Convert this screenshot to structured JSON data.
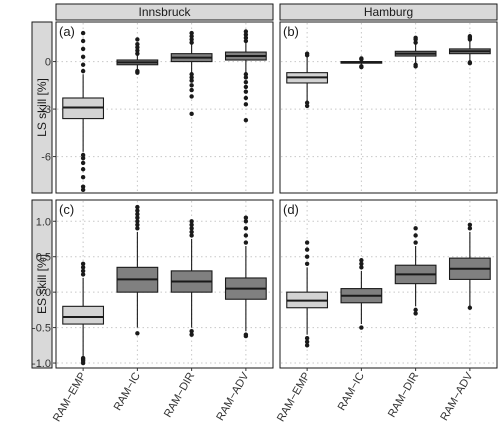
{
  "chart_data": {
    "type": "boxplot",
    "columns": [
      "Innsbruck",
      "Hamburg"
    ],
    "categories": [
      "RAM−EMP",
      "RAM−IC",
      "RAM−DIR",
      "RAM−ADV"
    ],
    "category_fills": [
      "#d3d3d3",
      "#808080",
      "#808080",
      "#808080"
    ],
    "rows": [
      {
        "ylabel": "LS skill [%]",
        "ylim": [
          -8.3,
          2.5
        ],
        "yticks": [
          {
            "value": 0,
            "label": "0"
          },
          {
            "value": -3,
            "label": "-3"
          },
          {
            "value": -6,
            "label": "-6"
          }
        ],
        "panels": [
          {
            "tag": "(a)",
            "boxes": [
              {
                "lw": -5.7,
                "q1": -3.6,
                "med": -2.9,
                "q3": -2.3,
                "uw": -0.8,
                "outliers": [
                  -5.9,
                  -6.1,
                  -6.4,
                  -6.8,
                  -7.3,
                  -7.9,
                  -8.1,
                  -0.6,
                  -0.2,
                  0.3,
                  0.8,
                  1.3,
                  1.8
                ]
              },
              {
                "lw": -0.5,
                "q1": -0.2,
                "med": -0.05,
                "q3": 0.1,
                "uw": 0.4,
                "outliers": [
                  -0.6,
                  -0.7,
                  0.5,
                  0.7,
                  0.9,
                  1.1,
                  1.4
                ]
              },
              {
                "lw": -0.7,
                "q1": 0.0,
                "med": 0.25,
                "q3": 0.5,
                "uw": 1.1,
                "outliers": [
                  -0.8,
                  -1.0,
                  -1.2,
                  -1.5,
                  -1.8,
                  -2.2,
                  -3.3,
                  1.2,
                  1.4,
                  1.6,
                  1.8
                ]
              },
              {
                "lw": -0.7,
                "q1": 0.1,
                "med": 0.35,
                "q3": 0.6,
                "uw": 1.2,
                "outliers": [
                  -0.8,
                  -1.0,
                  -1.3,
                  -1.6,
                  -1.9,
                  -2.3,
                  -2.7,
                  -3.7,
                  1.3,
                  1.5,
                  1.7,
                  1.9
                ]
              }
            ]
          },
          {
            "tag": "(b)",
            "boxes": [
              {
                "lw": -2.5,
                "q1": -1.35,
                "med": -1.0,
                "q3": -0.7,
                "uw": 0.3,
                "outliers": [
                  -2.6,
                  -2.8,
                  0.4,
                  0.5
                ]
              },
              {
                "lw": -0.25,
                "q1": -0.1,
                "med": -0.05,
                "q3": 0.0,
                "uw": 0.1,
                "outliers": [
                  -0.3,
                  -0.35,
                  0.15,
                  0.2
                ]
              },
              {
                "lw": -0.1,
                "q1": 0.35,
                "med": 0.5,
                "q3": 0.65,
                "uw": 1.1,
                "outliers": [
                  -0.2,
                  -0.3,
                  1.2,
                  1.4,
                  1.5
                ]
              },
              {
                "lw": 0.05,
                "q1": 0.5,
                "med": 0.65,
                "q3": 0.8,
                "uw": 1.3,
                "outliers": [
                  -0.05,
                  -0.1,
                  1.4,
                  1.5,
                  1.6
                ]
              }
            ]
          }
        ]
      },
      {
        "ylabel": "ES skill [%]",
        "ylim": [
          -1.07,
          1.3
        ],
        "yticks": [
          {
            "value": 1.0,
            "label": "1.0"
          },
          {
            "value": 0.5,
            "label": "0.5"
          },
          {
            "value": 0.0,
            "label": "0.0"
          },
          {
            "value": -0.5,
            "label": "-0.5"
          },
          {
            "value": -1.0,
            "label": "-1.0"
          }
        ],
        "panels": [
          {
            "tag": "(c)",
            "boxes": [
              {
                "lw": -0.9,
                "q1": -0.45,
                "med": -0.35,
                "q3": -0.2,
                "uw": 0.2,
                "outliers": [
                  -0.93,
                  -0.95,
                  -0.97,
                  -1.0,
                  0.25,
                  0.3,
                  0.35,
                  0.4
                ]
              },
              {
                "lw": -0.5,
                "q1": 0.0,
                "med": 0.18,
                "q3": 0.35,
                "uw": 0.85,
                "outliers": [
                  -0.58,
                  0.9,
                  0.95,
                  1.0,
                  1.05,
                  1.1,
                  1.15,
                  1.2
                ]
              },
              {
                "lw": -0.5,
                "q1": 0.0,
                "med": 0.15,
                "q3": 0.3,
                "uw": 0.75,
                "outliers": [
                  -0.55,
                  -0.6,
                  0.8,
                  0.85,
                  0.9,
                  0.95,
                  1.0
                ]
              },
              {
                "lw": -0.55,
                "q1": -0.1,
                "med": 0.05,
                "q3": 0.2,
                "uw": 0.65,
                "outliers": [
                  -0.6,
                  -0.62,
                  0.7,
                  0.8,
                  0.9,
                  1.0,
                  1.05
                ]
              }
            ]
          },
          {
            "tag": "(d)",
            "boxes": [
              {
                "lw": -0.6,
                "q1": -0.22,
                "med": -0.12,
                "q3": 0.0,
                "uw": 0.35,
                "outliers": [
                  -0.65,
                  -0.7,
                  -0.75,
                  0.4,
                  0.5,
                  0.6,
                  0.7
                ]
              },
              {
                "lw": -0.45,
                "q1": -0.15,
                "med": -0.05,
                "q3": 0.05,
                "uw": 0.3,
                "outliers": [
                  -0.5,
                  0.35,
                  0.4,
                  0.45
                ]
              },
              {
                "lw": -0.2,
                "q1": 0.12,
                "med": 0.25,
                "q3": 0.38,
                "uw": 0.65,
                "outliers": [
                  -0.25,
                  -0.3,
                  0.7,
                  0.8,
                  0.9
                ]
              },
              {
                "lw": -0.2,
                "q1": 0.18,
                "med": 0.33,
                "q3": 0.48,
                "uw": 0.85,
                "outliers": [
                  -0.22,
                  0.9,
                  0.95
                ]
              }
            ]
          }
        ]
      }
    ]
  }
}
